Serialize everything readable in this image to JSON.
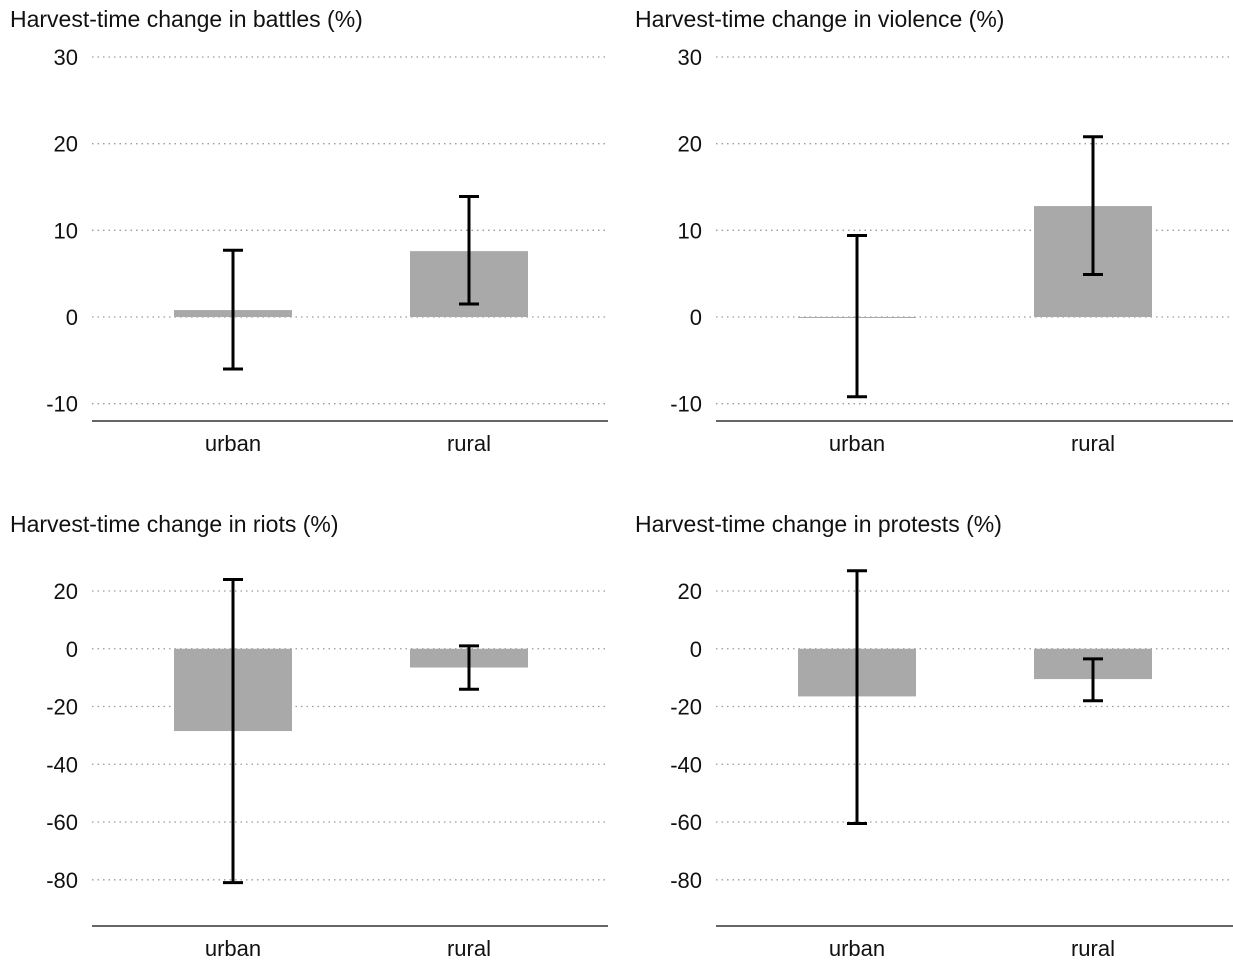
{
  "chart_data": [
    {
      "type": "bar",
      "title": "Harvest-time change in battles (%)",
      "categories": [
        "urban",
        "rural"
      ],
      "values": [
        0.8,
        7.6
      ],
      "error_low": [
        -6.0,
        1.5
      ],
      "error_high": [
        7.7,
        13.9
      ],
      "yticks": [
        -10,
        0,
        10,
        20,
        30
      ],
      "ylim": [
        -12,
        30
      ],
      "grid": true,
      "bar_color": "#a9a9a9"
    },
    {
      "type": "bar",
      "title": "Harvest-time change in violence (%)",
      "categories": [
        "urban",
        "rural"
      ],
      "values": [
        0.0,
        12.8
      ],
      "error_low": [
        -9.2,
        4.9
      ],
      "error_high": [
        9.4,
        20.8
      ],
      "yticks": [
        -10,
        0,
        10,
        20,
        30
      ],
      "ylim": [
        -12,
        30
      ],
      "grid": true,
      "bar_color": "#a9a9a9"
    },
    {
      "type": "bar",
      "title": "Harvest-time change in riots (%)",
      "categories": [
        "urban",
        "rural"
      ],
      "values": [
        -28.5,
        -6.5
      ],
      "error_low": [
        -81.0,
        -14.0
      ],
      "error_high": [
        24.0,
        1.0
      ],
      "yticks": [
        -80,
        -60,
        -40,
        -20,
        0,
        20
      ],
      "ylim": [
        -96,
        20
      ],
      "grid": true,
      "bar_color": "#a9a9a9"
    },
    {
      "type": "bar",
      "title": "Harvest-time change in protests (%)",
      "categories": [
        "urban",
        "rural"
      ],
      "values": [
        -16.5,
        -10.5
      ],
      "error_low": [
        -60.5,
        -18.0
      ],
      "error_high": [
        27.0,
        -3.5
      ],
      "yticks": [
        -80,
        -60,
        -40,
        -20,
        0,
        20
      ],
      "ylim": [
        -96,
        20
      ],
      "grid": true,
      "bar_color": "#a9a9a9"
    }
  ]
}
